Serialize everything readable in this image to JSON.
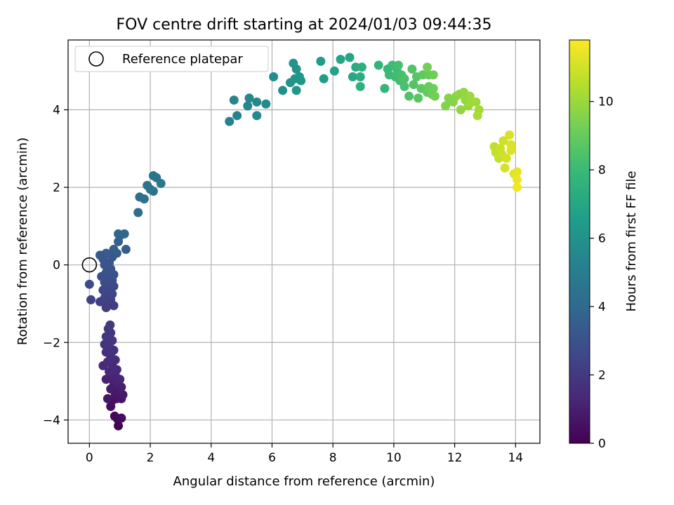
{
  "chart_data": {
    "type": "scatter",
    "title": "FOV centre drift starting at 2024/01/03 09:44:35",
    "xlabel": "Angular distance from reference (arcmin)",
    "ylabel": "Rotation from reference (arcmin)",
    "xlim": [
      -0.7,
      14.8
    ],
    "ylim": [
      -4.6,
      5.8
    ],
    "xticks": [
      0,
      2,
      4,
      6,
      8,
      10,
      12,
      14
    ],
    "yticks": [
      -4,
      -2,
      0,
      2,
      4
    ],
    "grid": true,
    "legend": {
      "position": "top-left",
      "entries": [
        {
          "label": "Reference platepar",
          "marker": "hollow-circle"
        }
      ]
    },
    "reference_point": {
      "x": 0,
      "y": 0
    },
    "colorbar": {
      "label": "Hours from first FF file",
      "range": [
        0,
        11.8
      ],
      "ticks": [
        0,
        2,
        4,
        6,
        8,
        10
      ],
      "colormap": "viridis",
      "colormap_stops": [
        "#440154",
        "#482878",
        "#3e4989",
        "#31688e",
        "#26828e",
        "#1f9e89",
        "#35b779",
        "#6ece58",
        "#b5de2b",
        "#fde725"
      ]
    },
    "series": [
      {
        "points": [
          [
            0.95,
            -4.15,
            0.05
          ],
          [
            0.92,
            -3.97,
            0.15
          ],
          [
            0.83,
            -3.9,
            0.25
          ],
          [
            1.05,
            -3.95,
            0.35
          ],
          [
            0.7,
            -3.65,
            0.45
          ],
          [
            0.75,
            -3.5,
            0.55
          ],
          [
            0.9,
            -3.45,
            0.6
          ],
          [
            1.05,
            -3.45,
            0.65
          ],
          [
            0.6,
            -3.45,
            0.7
          ],
          [
            0.85,
            -3.35,
            0.75
          ],
          [
            1.1,
            -3.35,
            0.8
          ],
          [
            0.95,
            -3.25,
            0.85
          ],
          [
            0.7,
            -3.2,
            0.9
          ],
          [
            0.8,
            -3.1,
            0.95
          ],
          [
            1.05,
            -3.15,
            1.0
          ],
          [
            0.9,
            -3.05,
            1.05
          ],
          [
            0.55,
            -2.95,
            1.1
          ],
          [
            0.75,
            -2.95,
            1.15
          ],
          [
            1.0,
            -2.95,
            1.2
          ],
          [
            0.85,
            -2.85,
            1.25
          ],
          [
            0.65,
            -2.75,
            1.3
          ],
          [
            0.9,
            -2.7,
            1.35
          ],
          [
            0.45,
            -2.6,
            1.4
          ],
          [
            0.75,
            -2.6,
            1.45
          ],
          [
            0.6,
            -2.5,
            1.5
          ],
          [
            0.85,
            -2.45,
            1.55
          ],
          [
            0.7,
            -2.35,
            1.6
          ],
          [
            0.55,
            -2.25,
            1.65
          ],
          [
            0.8,
            -2.2,
            1.7
          ],
          [
            0.65,
            -2.1,
            1.75
          ],
          [
            0.5,
            -2.05,
            1.8
          ],
          [
            0.75,
            -1.95,
            1.85
          ],
          [
            0.55,
            -1.85,
            1.9
          ],
          [
            0.7,
            -1.75,
            1.95
          ],
          [
            0.62,
            -1.65,
            2.0
          ],
          [
            0.68,
            -1.55,
            2.05
          ],
          [
            0.55,
            -1.1,
            2.1
          ],
          [
            0.8,
            -1.05,
            2.15
          ],
          [
            0.6,
            -0.95,
            2.2
          ],
          [
            0.7,
            -0.9,
            2.25
          ],
          [
            0.35,
            -0.95,
            2.3
          ],
          [
            0.05,
            -0.9,
            2.35
          ],
          [
            0.5,
            -0.85,
            2.4
          ],
          [
            0.75,
            -0.75,
            2.45
          ],
          [
            0.6,
            -0.7,
            2.5
          ],
          [
            0.45,
            -0.65,
            2.55
          ],
          [
            0.8,
            -0.55,
            2.6
          ],
          [
            0.65,
            -0.5,
            2.65
          ],
          [
            0.5,
            -0.45,
            2.7
          ],
          [
            0.0,
            -0.5,
            2.75
          ],
          [
            0.75,
            -0.4,
            2.8
          ],
          [
            0.6,
            -0.35,
            2.85
          ],
          [
            0.4,
            -0.3,
            2.9
          ],
          [
            0.8,
            -0.25,
            2.95
          ],
          [
            0.55,
            -0.2,
            3.0
          ],
          [
            0.7,
            -0.1,
            3.05
          ],
          [
            0.5,
            0.0,
            3.1
          ],
          [
            0.65,
            0.05,
            3.15
          ],
          [
            0.45,
            0.15,
            3.2
          ],
          [
            0.75,
            0.2,
            3.25
          ],
          [
            0.35,
            0.25,
            3.3
          ],
          [
            0.9,
            0.3,
            3.35
          ],
          [
            0.55,
            0.3,
            3.4
          ],
          [
            0.8,
            0.4,
            3.45
          ],
          [
            1.2,
            0.4,
            3.5
          ],
          [
            0.95,
            0.6,
            3.6
          ],
          [
            1.0,
            0.75,
            3.7
          ],
          [
            0.95,
            0.8,
            3.8
          ],
          [
            1.15,
            0.8,
            3.9
          ],
          [
            1.6,
            1.35,
            4.2
          ],
          [
            1.65,
            1.75,
            4.3
          ],
          [
            1.8,
            1.7,
            4.35
          ],
          [
            1.9,
            2.05,
            4.45
          ],
          [
            2.0,
            1.95,
            4.5
          ],
          [
            2.1,
            1.9,
            4.55
          ],
          [
            2.1,
            2.3,
            4.6
          ],
          [
            2.2,
            2.25,
            4.65
          ],
          [
            2.35,
            2.1,
            4.7
          ],
          [
            4.6,
            3.7,
            5.2
          ],
          [
            4.85,
            3.85,
            5.3
          ],
          [
            4.75,
            4.25,
            5.35
          ],
          [
            5.2,
            4.1,
            5.45
          ],
          [
            5.25,
            4.3,
            5.5
          ],
          [
            5.5,
            4.2,
            5.55
          ],
          [
            5.5,
            3.85,
            5.6
          ],
          [
            5.8,
            4.15,
            5.65
          ],
          [
            6.05,
            4.85,
            5.75
          ],
          [
            6.35,
            4.5,
            5.85
          ],
          [
            6.6,
            4.7,
            5.95
          ],
          [
            6.7,
            5.2,
            6.0
          ],
          [
            6.8,
            5.05,
            6.05
          ],
          [
            6.75,
            4.8,
            6.1
          ],
          [
            6.9,
            4.85,
            6.15
          ],
          [
            6.8,
            4.5,
            6.2
          ],
          [
            6.95,
            4.75,
            6.25
          ],
          [
            7.6,
            5.25,
            6.5
          ],
          [
            7.7,
            4.8,
            6.6
          ],
          [
            8.05,
            5.0,
            6.75
          ],
          [
            8.25,
            5.3,
            6.85
          ],
          [
            8.55,
            5.35,
            7.0
          ],
          [
            8.65,
            4.85,
            7.1
          ],
          [
            8.75,
            5.1,
            7.2
          ],
          [
            8.9,
            4.85,
            7.3
          ],
          [
            8.95,
            5.1,
            7.4
          ],
          [
            8.9,
            4.6,
            7.5
          ],
          [
            9.5,
            5.15,
            7.7
          ],
          [
            9.7,
            4.55,
            7.8
          ],
          [
            9.8,
            5.05,
            7.9
          ],
          [
            9.85,
            4.9,
            8.0
          ],
          [
            9.95,
            5.15,
            8.05
          ],
          [
            10.05,
            4.85,
            8.1
          ],
          [
            10.1,
            5.05,
            8.15
          ],
          [
            10.2,
            4.75,
            8.2
          ],
          [
            10.15,
            5.15,
            8.25
          ],
          [
            10.25,
            4.9,
            8.3
          ],
          [
            10.35,
            4.6,
            8.35
          ],
          [
            10.35,
            4.8,
            8.4
          ],
          [
            10.5,
            4.35,
            8.5
          ],
          [
            10.6,
            5.05,
            8.55
          ],
          [
            10.65,
            4.65,
            8.6
          ],
          [
            10.75,
            4.85,
            8.65
          ],
          [
            10.8,
            4.3,
            8.7
          ],
          [
            10.9,
            4.55,
            8.8
          ],
          [
            10.95,
            4.9,
            8.85
          ],
          [
            11.1,
            4.45,
            8.95
          ],
          [
            11.15,
            4.9,
            9.0
          ],
          [
            11.15,
            4.6,
            9.05
          ],
          [
            11.25,
            4.4,
            9.1
          ],
          [
            11.3,
            4.55,
            9.15
          ],
          [
            11.3,
            4.9,
            9.2
          ],
          [
            11.35,
            4.35,
            9.25
          ],
          [
            11.1,
            5.1,
            9.3
          ],
          [
            11.7,
            4.1,
            9.55
          ],
          [
            11.8,
            4.3,
            9.6
          ],
          [
            11.95,
            4.2,
            9.65
          ],
          [
            12.05,
            4.35,
            9.7
          ],
          [
            12.15,
            4.4,
            9.75
          ],
          [
            12.2,
            4.0,
            9.8
          ],
          [
            12.3,
            4.45,
            9.85
          ],
          [
            12.35,
            4.25,
            9.9
          ],
          [
            12.45,
            4.1,
            9.95
          ],
          [
            12.5,
            4.35,
            10.0
          ],
          [
            12.55,
            4.2,
            10.05
          ],
          [
            12.7,
            4.2,
            10.1
          ],
          [
            12.8,
            4.0,
            10.2
          ],
          [
            12.75,
            3.85,
            10.25
          ],
          [
            13.3,
            3.05,
            10.7
          ],
          [
            13.35,
            2.9,
            10.75
          ],
          [
            13.45,
            2.75,
            10.8
          ],
          [
            13.5,
            3.0,
            10.85
          ],
          [
            13.55,
            2.85,
            10.9
          ],
          [
            13.6,
            3.2,
            10.95
          ],
          [
            13.7,
            2.75,
            11.0
          ],
          [
            13.65,
            2.5,
            11.05
          ],
          [
            13.8,
            3.35,
            11.1
          ],
          [
            13.85,
            3.1,
            11.15
          ],
          [
            13.85,
            2.95,
            11.2
          ],
          [
            13.95,
            2.35,
            11.3
          ],
          [
            14.05,
            2.4,
            11.4
          ],
          [
            14.05,
            2.2,
            11.5
          ],
          [
            14.05,
            2.0,
            11.6
          ]
        ]
      }
    ]
  }
}
